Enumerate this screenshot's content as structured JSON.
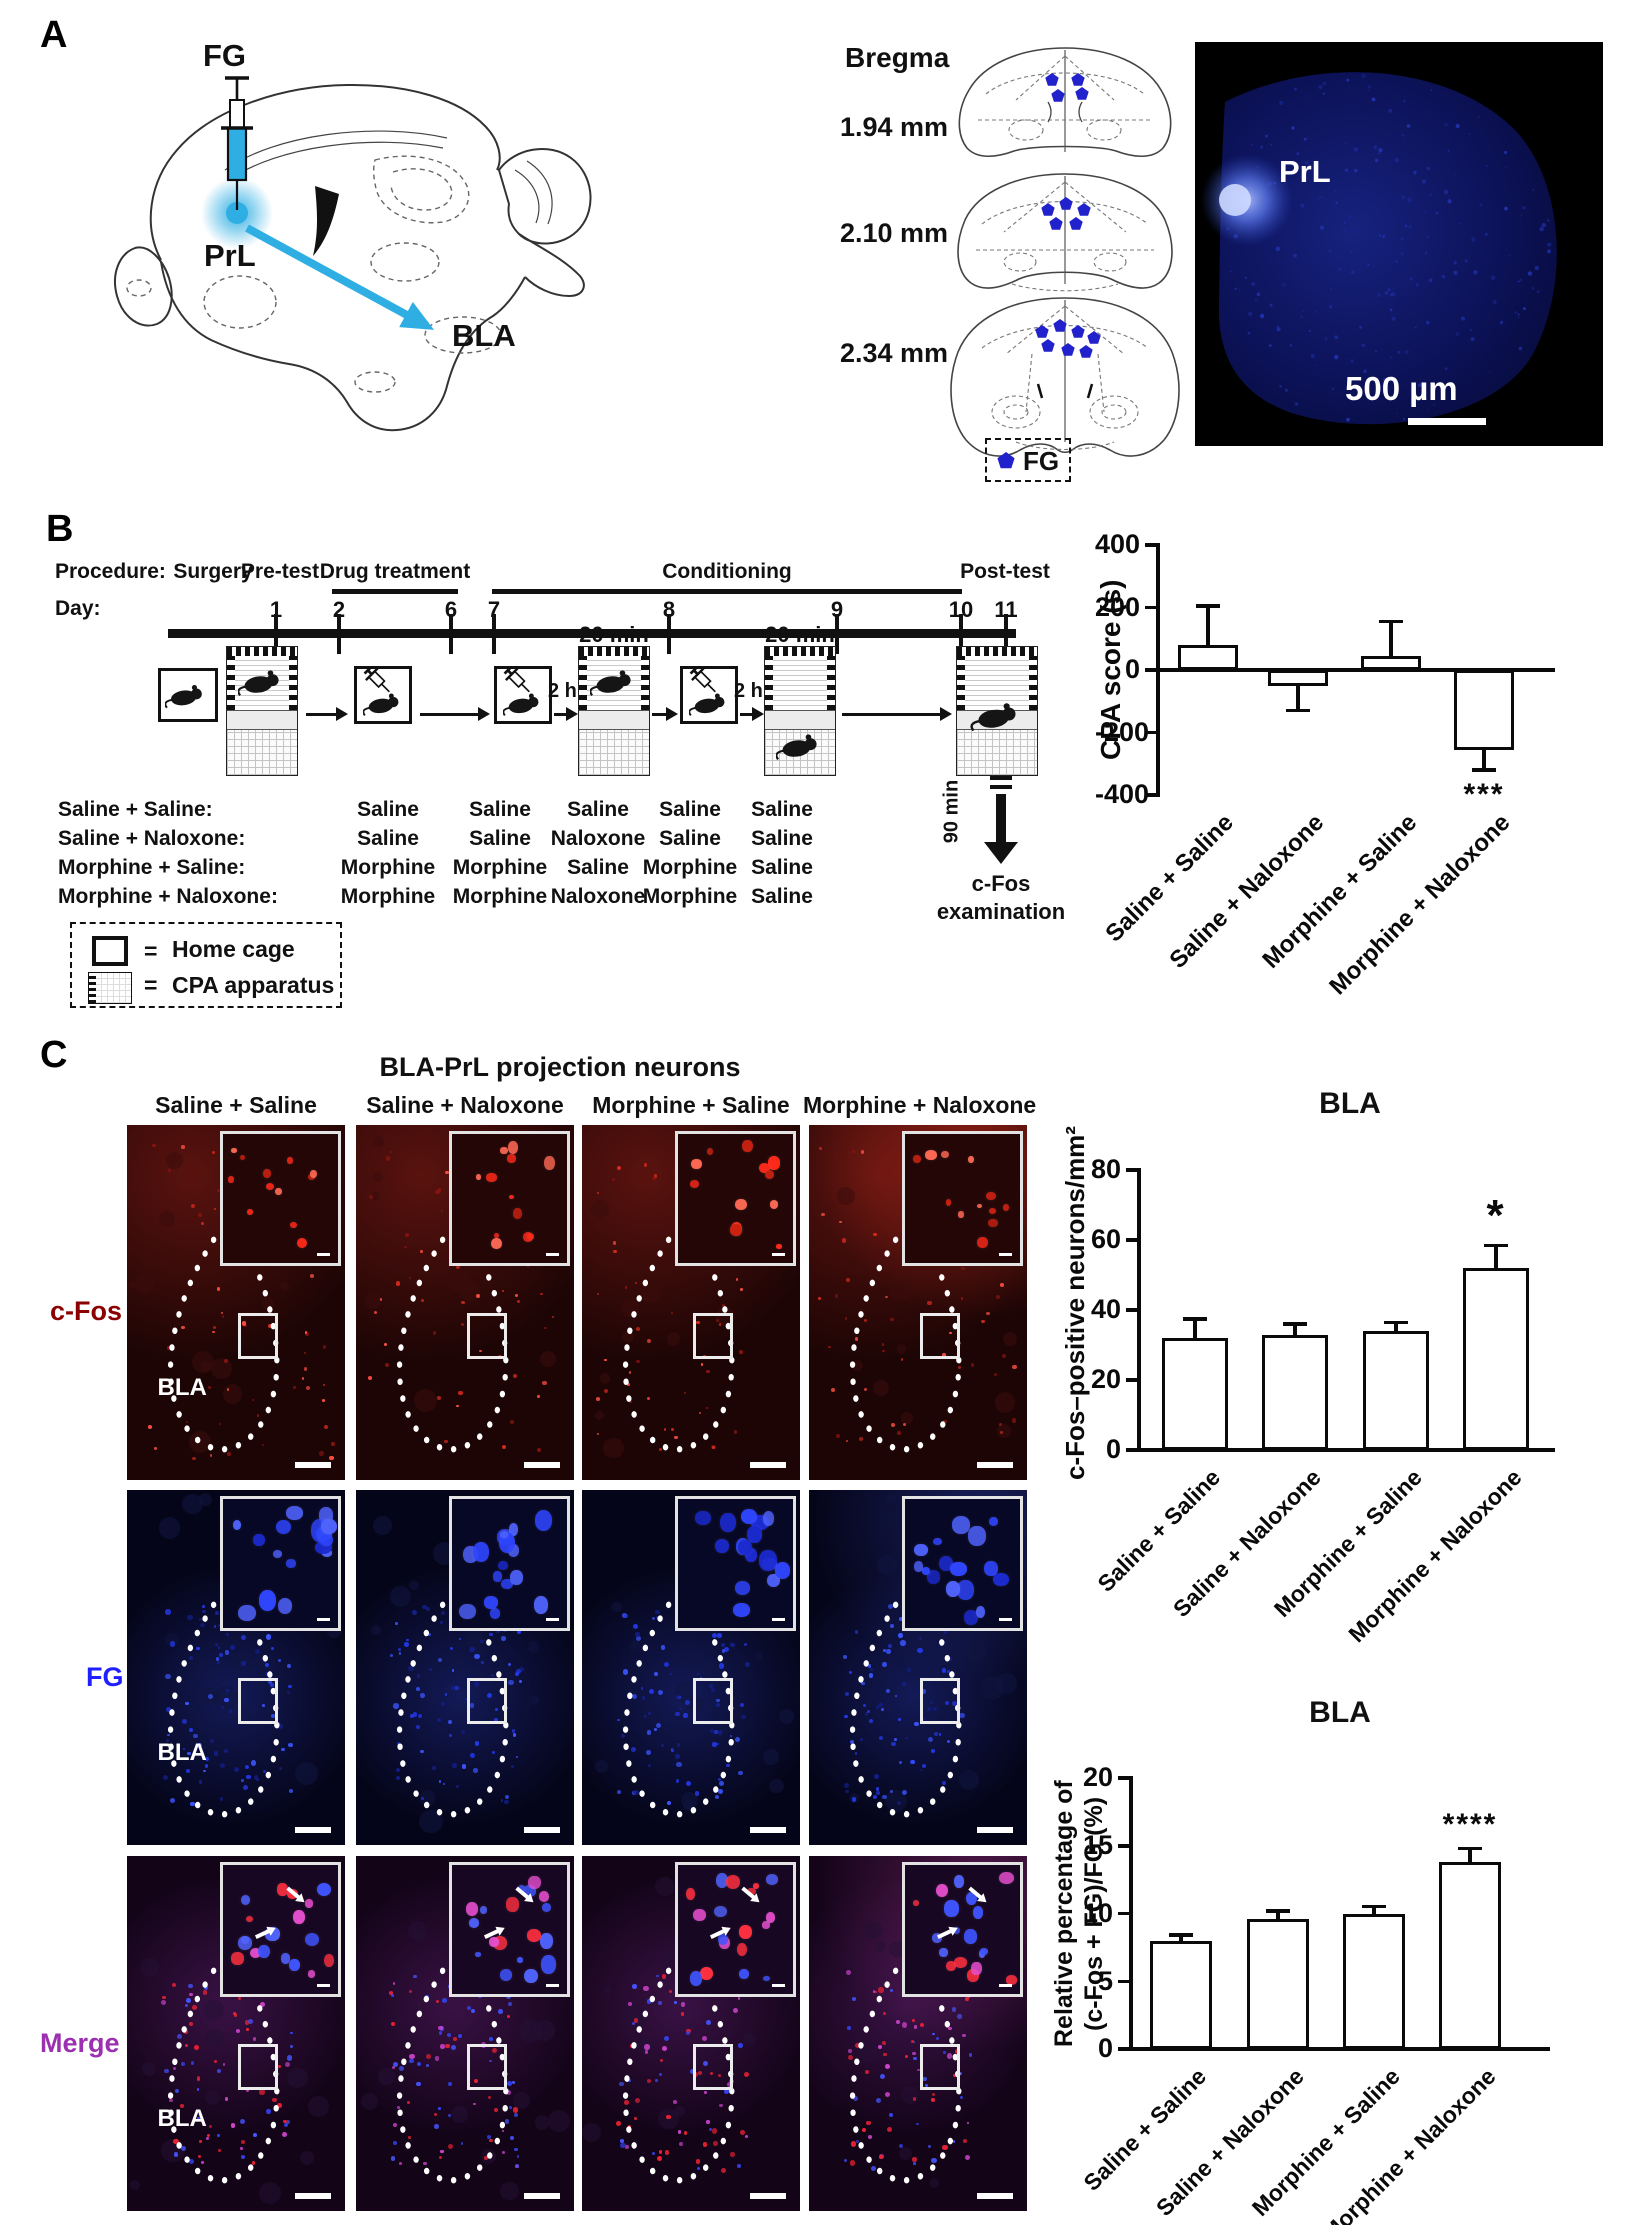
{
  "colors": {
    "accent_cyan": "#2FAEE3",
    "fg_dot_blue": "#2222CC",
    "cfos_label_red": "#8B0000",
    "fg_label_blue": "#1F1FFF",
    "merge_label_purple": "#9B30B0",
    "cfos_signal": "#e8301f",
    "fg_signal": "#3347f0",
    "merge_signal": "#c94ac9"
  },
  "panelA": {
    "label": "A",
    "injection_label": "FG",
    "injection_site_label": "PrL",
    "target_label": "BLA",
    "bregma_title": "Bregma",
    "sections": [
      {
        "label": "1.94 mm",
        "fg_spots": 4
      },
      {
        "label": "2.10 mm",
        "fg_spots": 5
      },
      {
        "label": "2.34 mm",
        "fg_spots": 7
      }
    ],
    "fg_legend_label": "FG",
    "micrograph": {
      "region_label": "PrL",
      "scale_text": "500 µm"
    }
  },
  "panelB": {
    "label": "B",
    "procedure_label": "Procedure:",
    "day_label": "Day:",
    "phases": [
      "Surgery",
      "Pre-test",
      "Drug treatment",
      "Conditioning",
      "Post-test"
    ],
    "days": [
      "1",
      "2",
      "6",
      "7",
      "8",
      "9",
      "10",
      "11"
    ],
    "session_duration": "20 min",
    "injection_interval": "2 h",
    "sacrifice_delay": "90 min",
    "endpoint": "c-Fos examination",
    "groups": [
      {
        "name": "Saline + Saline:",
        "doses": [
          "Saline",
          "Saline",
          "Saline",
          "Saline",
          "Saline"
        ]
      },
      {
        "name": "Saline + Naloxone:",
        "doses": [
          "Saline",
          "Saline",
          "Naloxone",
          "Saline",
          "Saline"
        ]
      },
      {
        "name": "Morphine + Saline:",
        "doses": [
          "Morphine",
          "Morphine",
          "Saline",
          "Morphine",
          "Saline"
        ]
      },
      {
        "name": "Morphine + Naloxone:",
        "doses": [
          "Morphine",
          "Morphine",
          "Naloxone",
          "Morphine",
          "Saline"
        ]
      }
    ],
    "legend": [
      {
        "symbol": "home-cage",
        "label": "Home cage"
      },
      {
        "symbol": "cpa-apparatus",
        "label": "CPA apparatus"
      }
    ]
  },
  "panelC": {
    "label": "C",
    "title": "BLA-PrL projection neurons",
    "column_headers": [
      "Saline + Saline",
      "Saline + Naloxone",
      "Morphine + Saline",
      "Morphine + Naloxone"
    ],
    "rows": [
      {
        "label": "c-Fos",
        "color": "#8B0000"
      },
      {
        "label": "FG",
        "color": "#1F1FFF"
      },
      {
        "label": "Merge",
        "color": "#9B30B0"
      }
    ],
    "region_label": "BLA"
  },
  "chart_data": [
    {
      "type": "bar",
      "title": "",
      "ylabel": "CPA score (s)",
      "categories": [
        "Saline + Saline",
        "Saline + Naloxone",
        "Morphine + Saline",
        "Morphine + Naloxone"
      ],
      "values": [
        80,
        -50,
        45,
        -255
      ],
      "errors": [
        125,
        80,
        110,
        65
      ],
      "significance": [
        "",
        "",
        "",
        "***"
      ],
      "ylim": [
        -400,
        400
      ],
      "yticks": [
        400,
        200,
        0,
        -200,
        -400
      ],
      "grid": false,
      "legend_position": "none"
    },
    {
      "type": "bar",
      "title": "BLA",
      "ylabel": "c-Fos–positive neurons/mm²",
      "categories": [
        "Saline + Saline",
        "Saline + Naloxone",
        "Morphine + Saline",
        "Morphine + Naloxone"
      ],
      "values": [
        32,
        33,
        34,
        52
      ],
      "errors": [
        5.5,
        3,
        2.5,
        6.5
      ],
      "significance": [
        "",
        "",
        "",
        "*"
      ],
      "ylim": [
        0,
        80
      ],
      "yticks": [
        0,
        20,
        40,
        60,
        80
      ],
      "grid": false,
      "legend_position": "none"
    },
    {
      "type": "bar",
      "title": "BLA",
      "ylabel": "Relative percentage of (c-Fos + FG)/FG (%)",
      "ylabel_lines": [
        "Relative percentage of",
        "(c-Fos + FG)/FG (%)"
      ],
      "categories": [
        "Saline + Saline",
        "Saline + Naloxone",
        "Morphine + Saline",
        "Morphine + Naloxone"
      ],
      "values": [
        8,
        9.6,
        10,
        13.8
      ],
      "errors": [
        0.4,
        0.6,
        0.5,
        1.0
      ],
      "significance": [
        "",
        "",
        "",
        "****"
      ],
      "ylim": [
        0,
        20
      ],
      "yticks": [
        0,
        5,
        10,
        15,
        20
      ],
      "grid": false,
      "legend_position": "none"
    }
  ]
}
